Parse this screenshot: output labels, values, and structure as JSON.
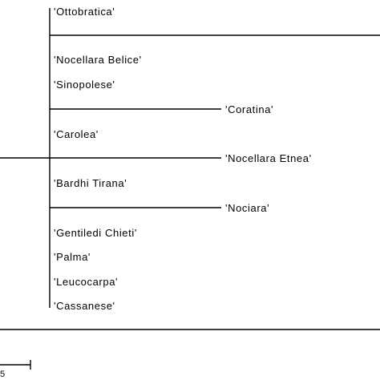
{
  "leaves": [
    {
      "id": "ottobratica",
      "label": "'Ottobratica'"
    },
    {
      "id": "nocellara-belice",
      "label": "'Nocellara Belice'"
    },
    {
      "id": "sinopolese",
      "label": "'Sinopolese'"
    },
    {
      "id": "coratina",
      "label": "'Coratina'"
    },
    {
      "id": "carolea",
      "label": "'Carolea'"
    },
    {
      "id": "nocellara-etnea",
      "label": "'Nocellara Etnea'"
    },
    {
      "id": "bardhi-tirana",
      "label": "'Bardhi Tirana'"
    },
    {
      "id": "nociara",
      "label": "'Nociara'"
    },
    {
      "id": "gentiledi-chieti",
      "label": "'Gentiledi Chieti'"
    },
    {
      "id": "palma",
      "label": "'Palma'"
    },
    {
      "id": "leucocarpa",
      "label": "'Leucocarpa'"
    },
    {
      "id": "cassanese",
      "label": "'Cassanese'"
    }
  ],
  "scale_bar": {
    "label": "5"
  }
}
